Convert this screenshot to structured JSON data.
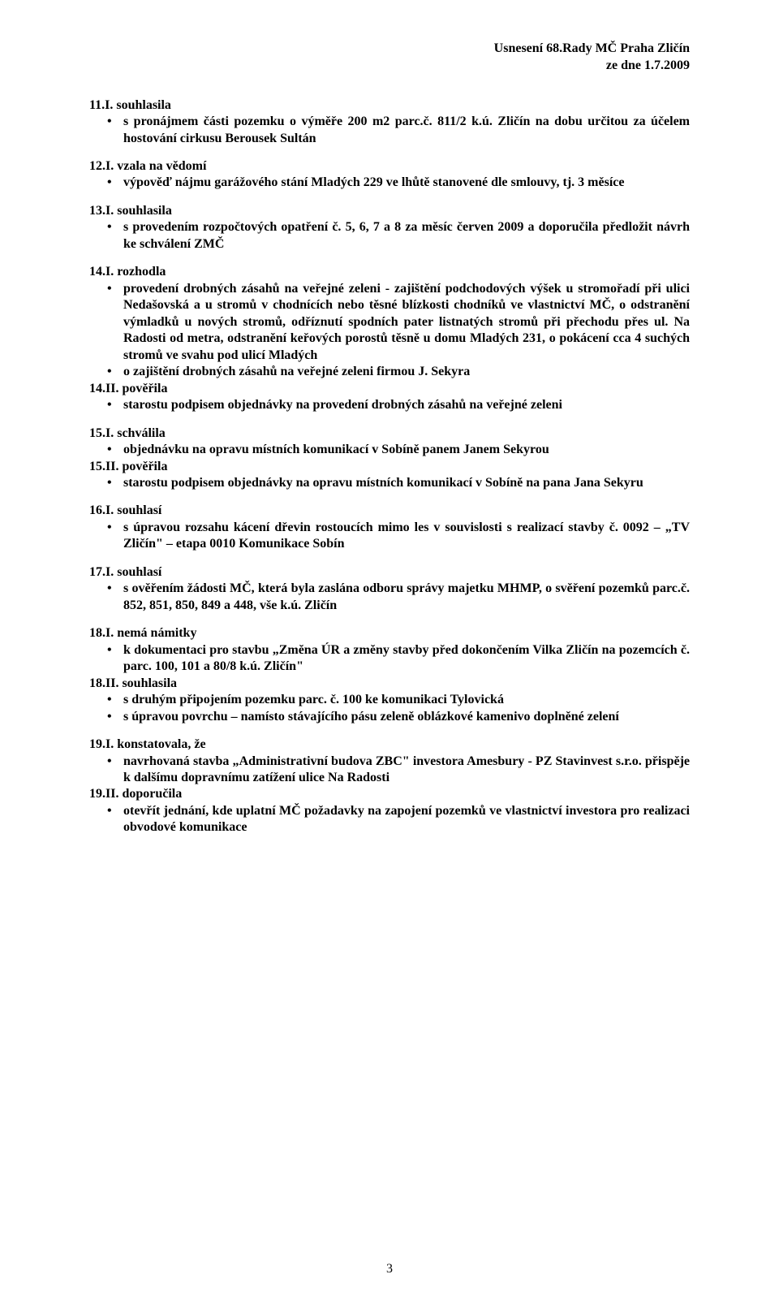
{
  "header": {
    "line1": "Usnesení 68.Rady MČ Praha Zličín",
    "line2": "ze dne 1.7.2009"
  },
  "sections": [
    {
      "heading": "11.I. souhlasila",
      "items": [
        "s pronájmem části pozemku o výměře 200 m2 parc.č. 811/2 k.ú. Zličín na dobu určitou za účelem hostování cirkusu Berousek Sultán"
      ]
    },
    {
      "heading": "12.I. vzala na vědomí",
      "items": [
        "výpověď nájmu garážového stání Mladých 229 ve lhůtě stanovené dle smlouvy, tj. 3 měsíce"
      ]
    },
    {
      "heading": "13.I. souhlasila",
      "items": [
        "s provedením rozpočtových opatření č. 5, 6, 7 a 8 za měsíc červen 2009 a doporučila předložit návrh ke schválení ZMČ"
      ]
    },
    {
      "heading": "14.I. rozhodla",
      "items": [
        "provedení drobných zásahů na veřejné zeleni  - zajištění podchodových výšek u stromořadí při ulici Nedašovská a u stromů v chodnících nebo těsné blízkosti chodníků ve vlastnictví MČ, o odstranění výmladků u nových stromů, odříznutí spodních pater  listnatých stromů  při přechodu přes ul. Na Radosti od metra, odstranění keřových porostů těsně u domu Mladých 231, o pokácení cca 4 suchých stromů ve svahu pod ulicí Mladých",
        "o zajištění drobných zásahů na veřejné zeleni firmou J. Sekyra"
      ]
    },
    {
      "heading": "14.II. pověřila",
      "items": [
        "starostu podpisem objednávky na provedení drobných zásahů na veřejné zeleni"
      ]
    },
    {
      "heading": "15.I. schválila",
      "items": [
        "objednávku na opravu místních komunikací v Sobíně panem Janem Sekyrou"
      ]
    },
    {
      "heading": "15.II. pověřila",
      "items": [
        "starostu podpisem objednávky na opravu místních komunikací v Sobíně na pana Jana Sekyru"
      ]
    },
    {
      "heading": "16.I. souhlasí",
      "items": [
        "s úpravou rozsahu kácení dřevin rostoucích mimo les v souvislosti s realizací stavby č. 0092 – „TV Zličín\" – etapa 0010 Komunikace Sobín"
      ]
    },
    {
      "heading": "17.I. souhlasí",
      "items": [
        "s ověřením žádosti MČ, která byla zaslána odboru správy majetku MHMP, o svěření pozemků parc.č.  852, 851, 850, 849 a 448, vše k.ú. Zličín"
      ]
    },
    {
      "heading": "18.I. nemá námitky",
      "items": [
        "k dokumentaci pro stavbu „Změna ÚR a změny stavby před dokončením Vilka Zličín na pozemcích č. parc. 100, 101 a 80/8 k.ú. Zličín\""
      ]
    },
    {
      "heading": "18.II. souhlasila",
      "items": [
        "s druhým připojením pozemku parc. č. 100 ke komunikaci Tylovická",
        "s úpravou povrchu – namísto stávajícího  pásu zeleně oblázkové kamenivo doplněné zelení"
      ]
    },
    {
      "heading": "19.I. konstatovala, že",
      "items": [
        "navrhovaná stavba „Administrativní budova ZBC\" investora Amesbury - PZ Stavinvest s.r.o. přispěje k dalšímu dopravnímu zatížení ulice Na Radosti"
      ]
    },
    {
      "heading": "19.II. doporučila",
      "items": [
        "otevřít jednání, kde uplatní MČ požadavky na zapojení pozemků ve vlastnictví investora pro realizaci obvodové komunikace"
      ]
    }
  ],
  "groups": [
    [
      0
    ],
    [
      1
    ],
    [
      2
    ],
    [
      3,
      4
    ],
    [
      5,
      6
    ],
    [
      7
    ],
    [
      8
    ],
    [
      9,
      10
    ],
    [
      11,
      12
    ]
  ],
  "page_number": "3"
}
